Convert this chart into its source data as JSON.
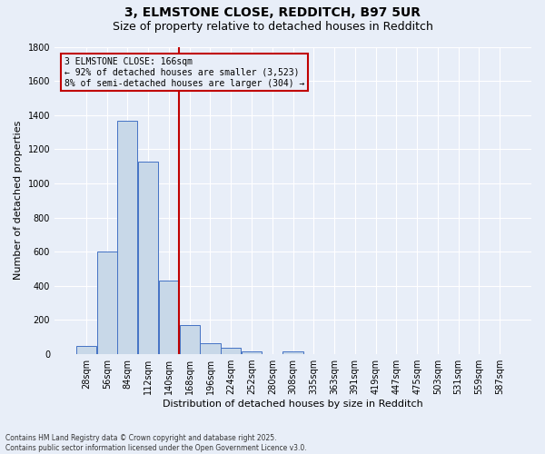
{
  "title_line1": "3, ELMSTONE CLOSE, REDDITCH, B97 5UR",
  "title_line2": "Size of property relative to detached houses in Redditch",
  "xlabel": "Distribution of detached houses by size in Redditch",
  "ylabel": "Number of detached properties",
  "footnote": "Contains HM Land Registry data © Crown copyright and database right 2025.\nContains public sector information licensed under the Open Government Licence v3.0.",
  "bar_labels": [
    "28sqm",
    "56sqm",
    "84sqm",
    "112sqm",
    "140sqm",
    "168sqm",
    "196sqm",
    "224sqm",
    "252sqm",
    "280sqm",
    "308sqm",
    "335sqm",
    "363sqm",
    "391sqm",
    "419sqm",
    "447sqm",
    "475sqm",
    "503sqm",
    "531sqm",
    "559sqm",
    "587sqm"
  ],
  "bar_values": [
    50,
    600,
    1365,
    1125,
    430,
    170,
    65,
    38,
    15,
    0,
    15,
    0,
    0,
    0,
    0,
    0,
    0,
    0,
    0,
    0,
    0
  ],
  "bar_color": "#c8d8e8",
  "bar_edge_color": "#4472c4",
  "background_color": "#e8eef8",
  "grid_color": "#ffffff",
  "vline_color": "#c00000",
  "vline_index": 5,
  "annotation_title": "3 ELMSTONE CLOSE: 166sqm",
  "annotation_line1": "← 92% of detached houses are smaller (3,523)",
  "annotation_line2": "8% of semi-detached houses are larger (304) →",
  "annotation_box_color": "#c00000",
  "ylim": [
    0,
    1800
  ],
  "yticks": [
    0,
    200,
    400,
    600,
    800,
    1000,
    1200,
    1400,
    1600,
    1800
  ],
  "title_fontsize": 10,
  "subtitle_fontsize": 9,
  "axis_label_fontsize": 8,
  "tick_fontsize": 7,
  "annot_fontsize": 7
}
